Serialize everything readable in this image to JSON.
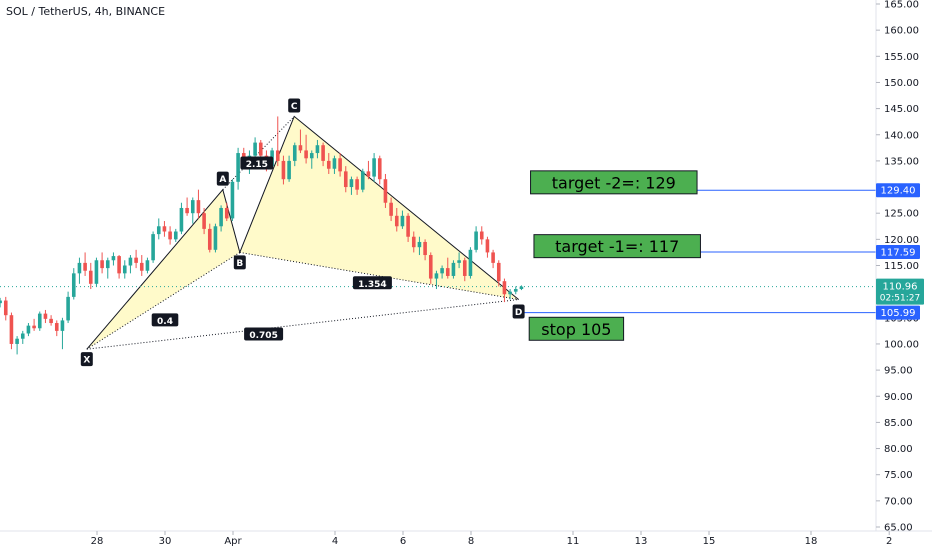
{
  "chart_data": {
    "type": "candlestick",
    "title": "SOL / TetherUS, 4h, BINANCE",
    "y_axis": {
      "range": [
        65,
        165
      ],
      "ticks": [
        "165.00",
        "160.00",
        "155.00",
        "150.00",
        "145.00",
        "140.00",
        "135.00",
        "130.00",
        "125.00",
        "120.00",
        "115.00",
        "110.00",
        "105.00",
        "100.00",
        "95.00",
        "90.00",
        "85.00",
        "80.00",
        "75.00",
        "70.00",
        "65.00"
      ]
    },
    "x_axis": {
      "ticks": [
        {
          "label": "28",
          "day": 0
        },
        {
          "label": "30",
          "day": 2
        },
        {
          "label": "Apr",
          "day": 4
        },
        {
          "label": "4",
          "day": 7
        },
        {
          "label": "6",
          "day": 9
        },
        {
          "label": "8",
          "day": 11
        },
        {
          "label": "11",
          "day": 14
        },
        {
          "label": "13",
          "day": 16
        },
        {
          "label": "15",
          "day": 18
        },
        {
          "label": "18",
          "day": 21
        },
        {
          "label": "2",
          "day": 23.3
        }
      ]
    },
    "colors": {
      "up": "#26a69a",
      "down": "#ef5350",
      "pattern_fill": "#fff9c4",
      "level_line": "#2962ff",
      "box_fill": "#4caf50",
      "price_dotted": "#26a69a"
    },
    "pattern": {
      "points": [
        {
          "label": "X",
          "day": -0.3,
          "price": 99.0
        },
        {
          "label": "A",
          "day": 3.7,
          "price": 129.5
        },
        {
          "label": "B",
          "day": 4.2,
          "price": 117.5
        },
        {
          "label": "C",
          "day": 5.8,
          "price": 143.5
        },
        {
          "label": "D",
          "day": 12.4,
          "price": 108.5
        }
      ],
      "ratios": [
        {
          "label": "0.4",
          "day": 2.0,
          "price": 104.5
        },
        {
          "label": "2.15",
          "day": 4.7,
          "price": 134.5
        },
        {
          "label": "1.354",
          "day": 8.1,
          "price": 111.6
        },
        {
          "label": "0.705",
          "day": 4.9,
          "price": 101.8
        }
      ]
    },
    "levels": [
      {
        "price": 129.4,
        "label": "129.40",
        "start_day": 12.8
      },
      {
        "price": 117.59,
        "label": "117.59",
        "start_day": 12.9
      },
      {
        "price": 105.99,
        "label": "105.99",
        "start_day": 12.5
      }
    ],
    "current_price": {
      "price": 110.96,
      "label": "110.96",
      "countdown": "02:51:27"
    },
    "annotations": [
      {
        "text": "target -2=: 129",
        "day": 15.2,
        "price": 130.9
      },
      {
        "text": "target -1=: 117",
        "day": 15.3,
        "price": 118.7
      },
      {
        "text": "stop 105",
        "day": 14.1,
        "price": 102.9
      }
    ],
    "candles": [
      {
        "o": 107.8,
        "h": 108.8,
        "l": 107.0,
        "c": 108.3
      },
      {
        "o": 108.3,
        "h": 109.0,
        "l": 104.5,
        "c": 105.5
      },
      {
        "o": 105.5,
        "h": 106.0,
        "l": 99.0,
        "c": 100.0
      },
      {
        "o": 100.0,
        "h": 101.5,
        "l": 98.0,
        "c": 101.0
      },
      {
        "o": 101.0,
        "h": 102.5,
        "l": 100.0,
        "c": 102.0
      },
      {
        "o": 102.0,
        "h": 104.0,
        "l": 101.5,
        "c": 103.5
      },
      {
        "o": 103.5,
        "h": 104.8,
        "l": 102.5,
        "c": 103.0
      },
      {
        "o": 103.0,
        "h": 106.2,
        "l": 102.5,
        "c": 105.8
      },
      {
        "o": 105.8,
        "h": 106.5,
        "l": 104.0,
        "c": 104.8
      },
      {
        "o": 104.8,
        "h": 105.5,
        "l": 103.5,
        "c": 104.0
      },
      {
        "o": 104.0,
        "h": 104.5,
        "l": 101.5,
        "c": 102.5
      },
      {
        "o": 102.5,
        "h": 105.0,
        "l": 99.0,
        "c": 104.5
      },
      {
        "o": 104.5,
        "h": 110.0,
        "l": 104.0,
        "c": 109.0
      },
      {
        "o": 109.0,
        "h": 114.5,
        "l": 108.5,
        "c": 113.5
      },
      {
        "o": 113.5,
        "h": 116.5,
        "l": 111.5,
        "c": 115.5
      },
      {
        "o": 115.5,
        "h": 117.5,
        "l": 113.0,
        "c": 114.0
      },
      {
        "o": 114.0,
        "h": 115.5,
        "l": 110.5,
        "c": 111.5
      },
      {
        "o": 111.5,
        "h": 116.5,
        "l": 111.0,
        "c": 116.0
      },
      {
        "o": 116.0,
        "h": 117.5,
        "l": 113.5,
        "c": 114.5
      },
      {
        "o": 114.5,
        "h": 116.5,
        "l": 112.5,
        "c": 116.0
      },
      {
        "o": 116.0,
        "h": 117.5,
        "l": 115.0,
        "c": 116.8
      },
      {
        "o": 116.8,
        "h": 117.0,
        "l": 112.5,
        "c": 113.5
      },
      {
        "o": 113.5,
        "h": 116.0,
        "l": 112.5,
        "c": 115.0
      },
      {
        "o": 115.0,
        "h": 117.0,
        "l": 113.5,
        "c": 116.5
      },
      {
        "o": 116.5,
        "h": 118.0,
        "l": 114.5,
        "c": 115.5
      },
      {
        "o": 115.5,
        "h": 117.0,
        "l": 113.0,
        "c": 114.0
      },
      {
        "o": 114.0,
        "h": 116.5,
        "l": 113.5,
        "c": 116.0
      },
      {
        "o": 116.0,
        "h": 121.5,
        "l": 115.5,
        "c": 121.0
      },
      {
        "o": 121.0,
        "h": 124.0,
        "l": 120.0,
        "c": 122.5
      },
      {
        "o": 122.5,
        "h": 123.5,
        "l": 120.5,
        "c": 121.5
      },
      {
        "o": 121.5,
        "h": 122.5,
        "l": 119.0,
        "c": 120.0
      },
      {
        "o": 120.0,
        "h": 122.0,
        "l": 119.5,
        "c": 121.5
      },
      {
        "o": 121.5,
        "h": 127.0,
        "l": 121.0,
        "c": 126.0
      },
      {
        "o": 126.0,
        "h": 128.0,
        "l": 124.5,
        "c": 125.0
      },
      {
        "o": 125.0,
        "h": 128.0,
        "l": 123.0,
        "c": 127.5
      },
      {
        "o": 127.5,
        "h": 129.5,
        "l": 124.0,
        "c": 125.0
      },
      {
        "o": 125.0,
        "h": 126.0,
        "l": 121.0,
        "c": 122.0
      },
      {
        "o": 122.0,
        "h": 123.0,
        "l": 117.5,
        "c": 118.0
      },
      {
        "o": 118.0,
        "h": 123.0,
        "l": 117.5,
        "c": 122.5
      },
      {
        "o": 122.5,
        "h": 126.5,
        "l": 121.5,
        "c": 126.0
      },
      {
        "o": 126.0,
        "h": 127.0,
        "l": 123.5,
        "c": 124.0
      },
      {
        "o": 124.0,
        "h": 131.5,
        "l": 123.5,
        "c": 131.0
      },
      {
        "o": 131.0,
        "h": 137.5,
        "l": 129.5,
        "c": 136.5
      },
      {
        "o": 136.5,
        "h": 137.5,
        "l": 133.5,
        "c": 134.5
      },
      {
        "o": 134.5,
        "h": 137.0,
        "l": 132.5,
        "c": 136.0
      },
      {
        "o": 136.0,
        "h": 139.5,
        "l": 135.5,
        "c": 138.5
      },
      {
        "o": 138.5,
        "h": 139.0,
        "l": 135.0,
        "c": 136.0
      },
      {
        "o": 136.0,
        "h": 137.0,
        "l": 133.0,
        "c": 134.0
      },
      {
        "o": 134.0,
        "h": 137.5,
        "l": 133.5,
        "c": 137.0
      },
      {
        "o": 137.0,
        "h": 143.5,
        "l": 134.0,
        "c": 135.0
      },
      {
        "o": 135.0,
        "h": 136.0,
        "l": 130.5,
        "c": 131.5
      },
      {
        "o": 131.5,
        "h": 136.0,
        "l": 131.0,
        "c": 135.0
      },
      {
        "o": 135.0,
        "h": 138.5,
        "l": 134.0,
        "c": 138.0
      },
      {
        "o": 138.0,
        "h": 141.0,
        "l": 136.5,
        "c": 137.0
      },
      {
        "o": 137.0,
        "h": 140.0,
        "l": 134.5,
        "c": 135.5
      },
      {
        "o": 135.5,
        "h": 137.0,
        "l": 133.5,
        "c": 136.5
      },
      {
        "o": 136.5,
        "h": 139.0,
        "l": 135.5,
        "c": 138.0
      },
      {
        "o": 138.0,
        "h": 138.5,
        "l": 134.0,
        "c": 135.0
      },
      {
        "o": 135.0,
        "h": 136.5,
        "l": 132.5,
        "c": 133.5
      },
      {
        "o": 133.5,
        "h": 136.0,
        "l": 132.5,
        "c": 135.5
      },
      {
        "o": 135.5,
        "h": 136.5,
        "l": 132.0,
        "c": 133.0
      },
      {
        "o": 133.0,
        "h": 134.0,
        "l": 129.0,
        "c": 130.0
      },
      {
        "o": 130.0,
        "h": 132.0,
        "l": 128.5,
        "c": 131.5
      },
      {
        "o": 131.5,
        "h": 132.0,
        "l": 128.5,
        "c": 129.5
      },
      {
        "o": 129.5,
        "h": 133.5,
        "l": 129.0,
        "c": 133.0
      },
      {
        "o": 133.0,
        "h": 135.0,
        "l": 131.5,
        "c": 132.0
      },
      {
        "o": 132.0,
        "h": 136.5,
        "l": 131.0,
        "c": 135.5
      },
      {
        "o": 135.5,
        "h": 136.0,
        "l": 130.5,
        "c": 131.5
      },
      {
        "o": 131.5,
        "h": 132.5,
        "l": 126.0,
        "c": 127.0
      },
      {
        "o": 127.0,
        "h": 128.0,
        "l": 123.5,
        "c": 124.5
      },
      {
        "o": 124.5,
        "h": 126.0,
        "l": 121.5,
        "c": 122.5
      },
      {
        "o": 122.5,
        "h": 125.5,
        "l": 122.0,
        "c": 124.5
      },
      {
        "o": 124.5,
        "h": 125.0,
        "l": 119.5,
        "c": 120.5
      },
      {
        "o": 120.5,
        "h": 121.5,
        "l": 117.5,
        "c": 118.5
      },
      {
        "o": 118.5,
        "h": 120.5,
        "l": 117.0,
        "c": 119.5
      },
      {
        "o": 119.5,
        "h": 120.0,
        "l": 116.0,
        "c": 117.0
      },
      {
        "o": 117.0,
        "h": 117.5,
        "l": 111.5,
        "c": 112.5
      },
      {
        "o": 112.5,
        "h": 114.0,
        "l": 110.5,
        "c": 113.5
      },
      {
        "o": 113.5,
        "h": 115.0,
        "l": 112.5,
        "c": 114.5
      },
      {
        "o": 114.5,
        "h": 116.5,
        "l": 112.5,
        "c": 113.0
      },
      {
        "o": 113.0,
        "h": 116.0,
        "l": 112.5,
        "c": 115.5
      },
      {
        "o": 115.5,
        "h": 117.5,
        "l": 114.5,
        "c": 116.0
      },
      {
        "o": 116.0,
        "h": 116.5,
        "l": 112.0,
        "c": 113.0
      },
      {
        "o": 113.0,
        "h": 118.5,
        "l": 112.5,
        "c": 118.0
      },
      {
        "o": 118.0,
        "h": 122.5,
        "l": 117.5,
        "c": 121.5
      },
      {
        "o": 121.5,
        "h": 122.5,
        "l": 119.0,
        "c": 120.0
      },
      {
        "o": 120.0,
        "h": 120.5,
        "l": 116.5,
        "c": 117.5
      },
      {
        "o": 117.5,
        "h": 118.0,
        "l": 114.5,
        "c": 115.5
      },
      {
        "o": 115.5,
        "h": 116.0,
        "l": 111.0,
        "c": 112.0
      },
      {
        "o": 112.0,
        "h": 112.5,
        "l": 108.0,
        "c": 109.5
      },
      {
        "o": 109.5,
        "h": 110.5,
        "l": 108.5,
        "c": 110.0
      },
      {
        "o": 110.0,
        "h": 111.0,
        "l": 109.5,
        "c": 110.5
      },
      {
        "o": 110.5,
        "h": 111.2,
        "l": 110.3,
        "c": 110.96
      }
    ]
  }
}
